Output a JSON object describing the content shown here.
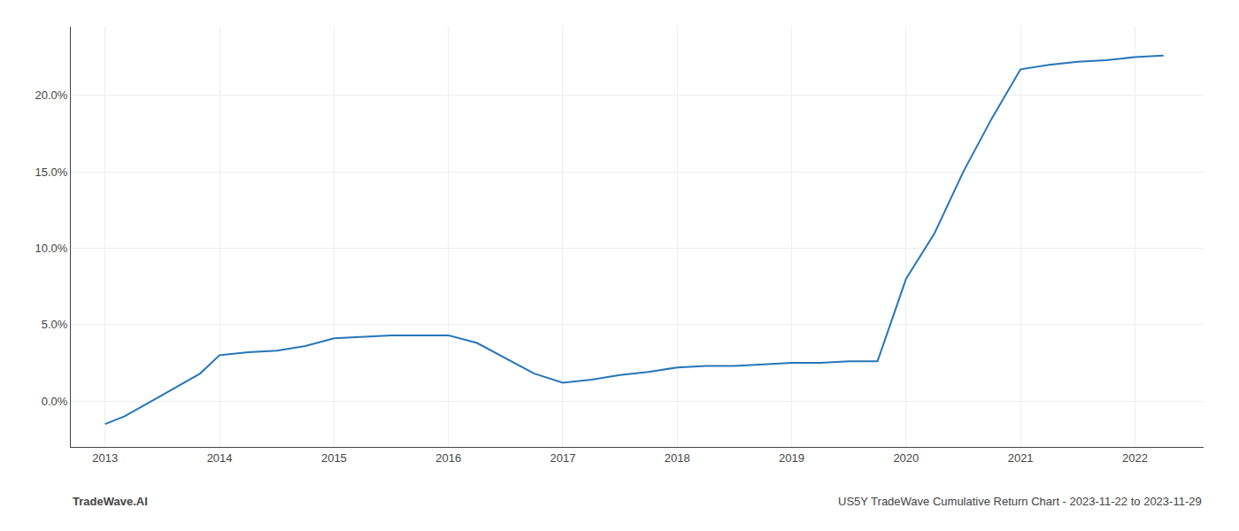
{
  "chart_data": {
    "type": "line",
    "x": [
      2013.0,
      2013.17,
      2013.5,
      2013.83,
      2014.0,
      2014.25,
      2014.5,
      2014.75,
      2015.0,
      2015.25,
      2015.5,
      2015.75,
      2016.0,
      2016.25,
      2016.5,
      2016.75,
      2017.0,
      2017.25,
      2017.5,
      2017.75,
      2018.0,
      2018.25,
      2018.5,
      2018.75,
      2019.0,
      2019.25,
      2019.5,
      2019.75,
      2020.0,
      2020.25,
      2020.5,
      2020.75,
      2021.0,
      2021.25,
      2021.5,
      2021.75,
      2022.0,
      2022.25
    ],
    "values": [
      -0.015,
      -0.01,
      0.004,
      0.018,
      0.03,
      0.032,
      0.033,
      0.036,
      0.041,
      0.042,
      0.043,
      0.043,
      0.043,
      0.038,
      0.028,
      0.018,
      0.012,
      0.014,
      0.017,
      0.019,
      0.022,
      0.023,
      0.023,
      0.024,
      0.025,
      0.025,
      0.026,
      0.026,
      0.08,
      0.11,
      0.15,
      0.185,
      0.217,
      0.22,
      0.222,
      0.223,
      0.225,
      0.226
    ],
    "color": "#2676b8",
    "xlim": [
      2012.7,
      2022.6
    ],
    "xticks": [
      2013,
      2014,
      2015,
      2016,
      2017,
      2018,
      2019,
      2020,
      2021,
      2022
    ],
    "ylim": [
      -0.03,
      0.245
    ],
    "yticks": [
      {
        "value": 0.0,
        "label": "0.0%"
      },
      {
        "value": 0.05,
        "label": "5.0%"
      },
      {
        "value": 0.1,
        "label": "10.0%"
      },
      {
        "value": 0.15,
        "label": "15.0%"
      },
      {
        "value": 0.2,
        "label": "20.0%"
      }
    ],
    "grid": true,
    "annotations": [
      "TradeWave.AI",
      "US5Y TradeWave Cumulative Return Chart - 2023-11-22 to 2023-11-29"
    ]
  }
}
